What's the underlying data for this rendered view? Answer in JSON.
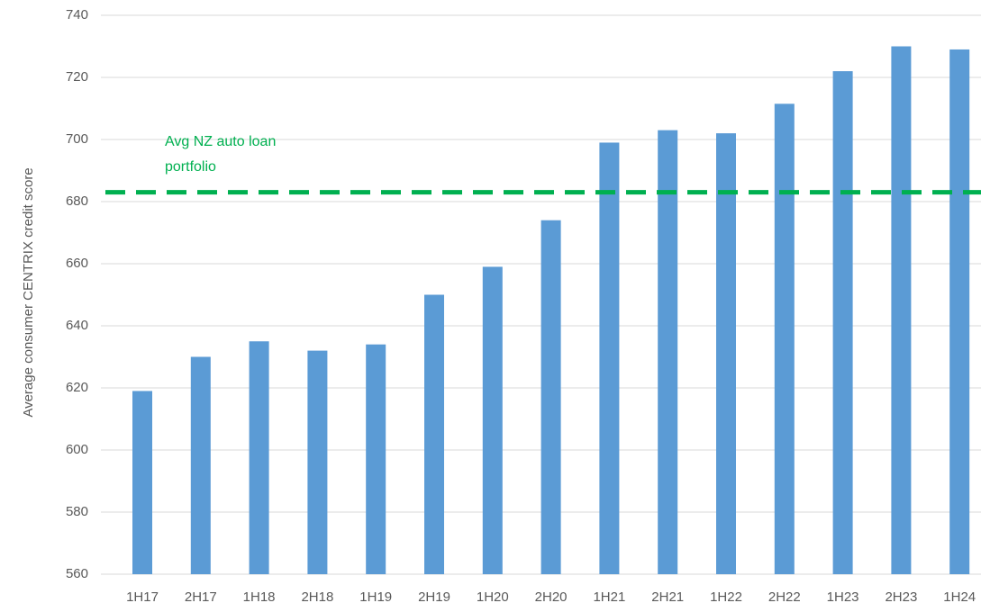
{
  "chart_data": {
    "type": "bar",
    "y_label": "Average consumer CENTRIX credit score",
    "categories": [
      "1H17",
      "2H17",
      "1H18",
      "2H18",
      "1H19",
      "2H19",
      "1H20",
      "2H20",
      "1H21",
      "2H21",
      "1H22",
      "2H22",
      "1H23",
      "2H23",
      "1H24"
    ],
    "values": [
      619,
      630,
      635,
      632,
      634,
      650,
      659,
      674,
      699,
      703,
      702,
      711.5,
      722,
      730,
      729
    ],
    "color": "#5b9bd5",
    "ylim": [
      560,
      740
    ],
    "yticks": [
      560,
      580,
      600,
      620,
      640,
      660,
      680,
      700,
      720,
      740
    ],
    "grid": true,
    "reference_line": {
      "value": 683,
      "label": [
        "Avg NZ auto loan",
        "portfolio"
      ],
      "color": "#00b050"
    }
  }
}
